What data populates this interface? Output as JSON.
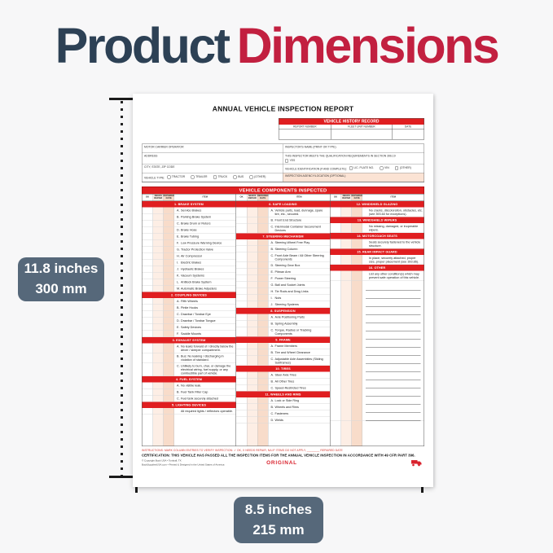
{
  "page": {
    "title_part1": "Product",
    "title_part2": "Dimensions",
    "title_color_navy": "#2d4155",
    "title_color_red": "#c22040"
  },
  "dimensions": {
    "badge_color": "#56687a",
    "height": {
      "imperial": "11.8 inches",
      "metric": "300 mm"
    },
    "width": {
      "imperial": "8.5 inches",
      "metric": "215 mm"
    }
  },
  "form": {
    "title": "ANNUAL VEHICLE INSPECTION REPORT",
    "accent_red": "#e01e20",
    "history": {
      "title": "VEHICLE HISTORY RECORD",
      "columns": [
        "REPORT NUMBER",
        "FLEET UNIT NUMBER",
        "DATE"
      ]
    },
    "info_left": [
      {
        "label": "MOTOR CARRIER OPERATOR"
      },
      {
        "label": "ADDRESS"
      },
      {
        "label": "CITY, STATE, ZIP CODE"
      },
      {
        "label": "VEHICLE TYPE:",
        "checkboxes": [
          "TRACTOR",
          "TRAILER",
          "TRUCK",
          "BUS",
          "(OTHER)"
        ],
        "inline": true
      }
    ],
    "info_right": [
      {
        "label": "INSPECTOR'S NAME (PRINT OR TYPE)"
      },
      {
        "label": "THIS INSPECTOR MEETS THE QUALIFICATION REQUIREMENTS IN SECTION 396.19",
        "checkboxes": [
          "YES"
        ]
      },
      {
        "label": "VEHICLE IDENTIFICATION (# AND COMPLETE):",
        "checkboxes": [
          "LIC. PLATE NO.",
          "VIN",
          "(OTHER)"
        ],
        "inline": true
      },
      {
        "label": "INSPECTION AGENCY/LOCATION (OPTIONAL)",
        "highlight": true
      }
    ],
    "components_banner": "VEHICLE COMPONENTS INSPECTED",
    "table_headers": [
      "OK",
      "NEEDS REPAIR",
      "REPAIRED DATE",
      "ITEM"
    ],
    "columns": [
      {
        "sections": [
          {
            "title": "1. BRAKE SYSTEM",
            "items": [
              {
                "letter": "A.",
                "text": "Service Brakes"
              },
              {
                "letter": "B.",
                "text": "Parking Brake System"
              },
              {
                "letter": "C.",
                "text": "Brake Drum or Rotors"
              },
              {
                "letter": "D.",
                "text": "Brake Hose"
              },
              {
                "letter": "E.",
                "text": "Brake Tubing"
              },
              {
                "letter": "F.",
                "text": "Low Pressure Warning Device"
              },
              {
                "letter": "G.",
                "text": "Tractor Protection Valve"
              },
              {
                "letter": "H.",
                "text": "Air Compressor"
              },
              {
                "letter": "I.",
                "text": "Electric Brakes"
              },
              {
                "letter": "J.",
                "text": "Hydraulic Brakes"
              },
              {
                "letter": "K.",
                "text": "Vacuum Systems"
              },
              {
                "letter": "L.",
                "text": "Antilock Brake System"
              },
              {
                "letter": "M.",
                "text": "Automatic Brake Adjusters"
              }
            ]
          },
          {
            "title": "2. COUPLING DEVICES",
            "items": [
              {
                "letter": "A.",
                "text": "Fifth Wheels"
              },
              {
                "letter": "B.",
                "text": "Pintle Hooks"
              },
              {
                "letter": "C.",
                "text": "Drawbar / Towbar Eye"
              },
              {
                "letter": "D.",
                "text": "Drawbar / Towbar Tongue"
              },
              {
                "letter": "E.",
                "text": "Safety Devices"
              },
              {
                "letter": "F.",
                "text": "Saddle Mounts"
              }
            ]
          },
          {
            "title": "3. EXHAUST SYSTEM",
            "items": [
              {
                "letter": "A.",
                "text": "No leaks forward of / directly below the driver / sleeper compartment."
              },
              {
                "letter": "B.",
                "text": "Bus: No leaking / discharging in violation of standard."
              },
              {
                "letter": "C.",
                "text": "Unlikely to burn, char, or damage the electrical wiring, fuel supply, or any combustible part of vehicle."
              }
            ]
          },
          {
            "title": "4. FUEL SYSTEM",
            "items": [
              {
                "letter": "A.",
                "text": "No visible leak."
              },
              {
                "letter": "B.",
                "text": "Fuel Tank Filler Cap"
              },
              {
                "letter": "C.",
                "text": "Fuel tank securely attached"
              }
            ]
          },
          {
            "title": "5. LIGHTING DEVICES",
            "items": [
              {
                "letter": "",
                "text": "All required lights / reflectors operable."
              }
            ]
          }
        ]
      },
      {
        "sections": [
          {
            "title": "6. SAFE LOADING",
            "items": [
              {
                "letter": "A.",
                "text": "Vehicle parts, load, dunnage, spare tire, etc., secured."
              },
              {
                "letter": "B.",
                "text": "Front End Structure"
              },
              {
                "letter": "C.",
                "text": "Intermodal Container Securement Devices"
              }
            ]
          },
          {
            "title": "7. STEERING MECHANISM",
            "items": [
              {
                "letter": "A.",
                "text": "Steering Wheel Free Play"
              },
              {
                "letter": "B.",
                "text": "Steering Column"
              },
              {
                "letter": "C.",
                "text": "Front Axle Beam / All Other Steering Components"
              },
              {
                "letter": "D.",
                "text": "Steering Gear Box"
              },
              {
                "letter": "E.",
                "text": "Pitman Arm"
              },
              {
                "letter": "F.",
                "text": "Power Steering"
              },
              {
                "letter": "G.",
                "text": "Ball and Socket Joints"
              },
              {
                "letter": "H.",
                "text": "Tie Rods and Drag Links"
              },
              {
                "letter": "I.",
                "text": "Nuts"
              },
              {
                "letter": "J.",
                "text": "Steering Systems"
              }
            ]
          },
          {
            "title": "8. SUSPENSION",
            "items": [
              {
                "letter": "A.",
                "text": "Axle Positioning Parts"
              },
              {
                "letter": "B.",
                "text": "Spring Assembly"
              },
              {
                "letter": "C.",
                "text": "Torque, Radius or Tracking Components"
              }
            ]
          },
          {
            "title": "9. FRAME",
            "items": [
              {
                "letter": "A.",
                "text": "Frame Members"
              },
              {
                "letter": "B.",
                "text": "Tire and Wheel Clearance"
              },
              {
                "letter": "C.",
                "text": "Adjustable Axle Assemblies (Sliding Subframes)"
              }
            ]
          },
          {
            "title": "10. TIRES",
            "items": [
              {
                "letter": "A.",
                "text": "Steer Axle Tires"
              },
              {
                "letter": "B.",
                "text": "All Other Tires"
              },
              {
                "letter": "C.",
                "text": "Speed-Restricted Tires"
              }
            ]
          },
          {
            "title": "11. WHEELS AND RIMS",
            "items": [
              {
                "letter": "A.",
                "text": "Lock or Side Ring"
              },
              {
                "letter": "B.",
                "text": "Wheels and Rims"
              },
              {
                "letter": "C.",
                "text": "Fasteners"
              },
              {
                "letter": "D.",
                "text": "Welds"
              }
            ]
          }
        ]
      },
      {
        "sections": [
          {
            "title": "12. WINDSHIELD GLAZING",
            "items": [
              {
                "letter": "",
                "text": "No cracks, discoloration, obstacles, etc. (see 393.60 for exceptions)."
              }
            ]
          },
          {
            "title": "13. WINDSHIELD WIPERS",
            "items": [
              {
                "letter": "",
                "text": "No missing, damaged, or inoperable wipers."
              }
            ]
          },
          {
            "title": "14. MOTORCOACH SEATS",
            "items": [
              {
                "letter": "",
                "text": "Seats securely fastened to the vehicle structure."
              }
            ]
          },
          {
            "title": "15. REAR IMPACT GUARD",
            "items": [
              {
                "letter": "",
                "text": "In place, securely attached, proper size, proper placement (see 393.86)."
              }
            ]
          },
          {
            "title": "16. OTHER",
            "items": [
              {
                "letter": "",
                "text": "List any other condition(s) which may prevent safe operation of this vehicle."
              }
            ],
            "writing_lines": 17
          }
        ]
      }
    ],
    "footer": {
      "instructions": "INSTRUCTIONS: MARK COLUMN ENTRIES TO VERIFY INSPECTION:   ✓  OK,   X  NEEDS REPAIR,   NA  IF ITEMS DO NOT APPLY, ________ REPAIRED DATE",
      "certification": "CERTIFICATION: THIS VEHICLE HAS PASSED ALL THE INSPECTION ITEMS FOR THE ANNUAL VEHICLE INSPECTION IN ACCORDANCE WITH 49 CFR PART 396.",
      "copyright_line1": "© Copyright Buck USA • Tomball, TX",
      "copyright_line2": "BuckSuppliesUSA.com • Printed & Designed in the United States of America",
      "original": "ORIGINAL"
    }
  }
}
